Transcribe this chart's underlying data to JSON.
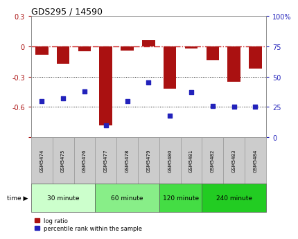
{
  "title": "GDS295 / 14590",
  "samples": [
    "GSM5474",
    "GSM5475",
    "GSM5476",
    "GSM5477",
    "GSM5478",
    "GSM5479",
    "GSM5480",
    "GSM5481",
    "GSM5482",
    "GSM5483",
    "GSM5484"
  ],
  "log_ratio": [
    -0.08,
    -0.17,
    -0.05,
    -0.78,
    -0.04,
    0.06,
    -0.42,
    -0.02,
    -0.14,
    -0.35,
    -0.22
  ],
  "percentile": [
    30,
    32,
    38,
    10,
    30,
    45,
    18,
    37,
    26,
    25,
    25
  ],
  "ylim_left": [
    -0.9,
    0.3
  ],
  "ylim_right": [
    0,
    100
  ],
  "yticks_left": [
    -0.9,
    -0.6,
    -0.3,
    0.0,
    0.3
  ],
  "yticks_right": [
    0,
    25,
    50,
    75,
    100
  ],
  "bar_color": "#aa1111",
  "dot_color": "#2222bb",
  "zero_line_color": "#cc2222",
  "grid_line_color": "#111111",
  "groups": [
    {
      "label": "30 minute",
      "start": 0,
      "end": 3,
      "color": "#ccffcc"
    },
    {
      "label": "60 minute",
      "start": 3,
      "end": 6,
      "color": "#88ee88"
    },
    {
      "label": "120 minute",
      "start": 6,
      "end": 8,
      "color": "#44dd44"
    },
    {
      "label": "240 minute",
      "start": 8,
      "end": 11,
      "color": "#22cc22"
    }
  ],
  "time_label": "time",
  "legend_bar_label": "log ratio",
  "legend_dot_label": "percentile rank within the sample",
  "background_color": "#ffffff",
  "tick_label_bg": "#cccccc"
}
